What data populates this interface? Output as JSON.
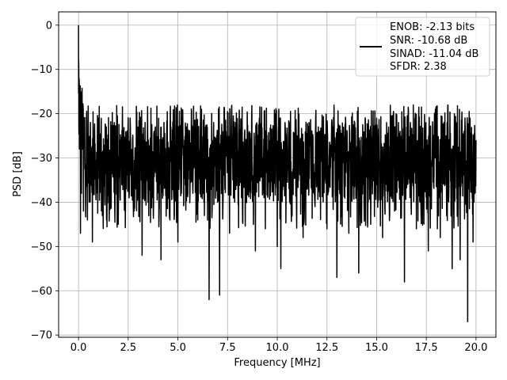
{
  "chart_data": {
    "type": "line",
    "xlabel": "Frequency [MHz]",
    "ylabel": "PSD [dB]",
    "xlim": [
      -1.0,
      21.0
    ],
    "ylim": [
      -70.5,
      3.0
    ],
    "x_ticks": [
      0.0,
      2.5,
      5.0,
      7.5,
      10.0,
      12.5,
      15.0,
      17.5,
      20.0
    ],
    "x_tick_labels": [
      "0.0",
      "2.5",
      "5.0",
      "7.5",
      "10.0",
      "12.5",
      "15.0",
      "17.5",
      "20.0"
    ],
    "y_ticks": [
      0,
      -10,
      -20,
      -30,
      -40,
      -50,
      -60,
      -70
    ],
    "y_tick_labels": [
      "0",
      "−10",
      "−20",
      "−30",
      "−40",
      "−50",
      "−60",
      "−70"
    ],
    "grid": true,
    "legend_position": "top-right",
    "series": [
      {
        "color": "#000000",
        "x": [
          0.0,
          0.01,
          0.02,
          0.03,
          0.05,
          0.08,
          0.1,
          0.12,
          0.15,
          0.2,
          0.25,
          0.3,
          0.35,
          0.4,
          0.45,
          0.5,
          0.55,
          0.6,
          0.7,
          0.8,
          0.9,
          1.0,
          1.2,
          1.4,
          1.6,
          1.8,
          2.0,
          2.2,
          2.4,
          2.6,
          2.8,
          3.0,
          3.2,
          3.35,
          3.5,
          3.8,
          4.0,
          4.15,
          4.3,
          4.6,
          4.8,
          5.0,
          5.2,
          5.5,
          5.8,
          6.0,
          6.3,
          6.57,
          6.8,
          7.0,
          7.1,
          7.3,
          7.6,
          7.9,
          8.2,
          8.5,
          8.8,
          8.9,
          9.1,
          9.4,
          9.7,
          10.0,
          10.18,
          10.4,
          10.7,
          11.0,
          11.3,
          11.6,
          11.9,
          12.2,
          12.5,
          12.8,
          13.0,
          13.3,
          13.6,
          13.9,
          14.1,
          14.4,
          14.7,
          15.0,
          15.3,
          15.6,
          15.9,
          16.2,
          16.4,
          16.7,
          17.0,
          17.3,
          17.6,
          17.9,
          18.2,
          18.5,
          18.8,
          19.0,
          19.2,
          19.4,
          19.58,
          19.7,
          19.85,
          20.0
        ],
        "values": [
          0,
          -8,
          -23,
          -12,
          -28,
          -15,
          -47,
          -22,
          -38,
          -20,
          -42,
          -25,
          -37,
          -21,
          -44,
          -26,
          -40,
          -22,
          -49,
          -24,
          -38,
          -21,
          -43,
          -23,
          -39,
          -22,
          -45,
          -24,
          -37,
          -21,
          -42,
          -23,
          -52,
          -22,
          -40,
          -24,
          -36,
          -53,
          -22,
          -44,
          -25,
          -49,
          -21,
          -38,
          -23,
          -44,
          -26,
          -62,
          -22,
          -40,
          -61,
          -24,
          -47,
          -22,
          -39,
          -25,
          -45,
          -51,
          -21,
          -46,
          -24,
          -50,
          -55,
          -23,
          -42,
          -25,
          -48,
          -22,
          -41,
          -24,
          -46,
          -23,
          -57,
          -25,
          -47,
          -22,
          -56,
          -24,
          -45,
          -21,
          -48,
          -23,
          -42,
          -25,
          -58,
          -22,
          -46,
          -24,
          -51,
          -23,
          -48,
          -25,
          -55,
          -22,
          -53,
          -24,
          -67,
          -21,
          -49,
          -26
        ]
      }
    ],
    "legend": [
      "ENOB: -2.13 bits",
      "SNR: -10.68 dB",
      "SINAD: -11.04 dB",
      "SFDR: 2.38"
    ]
  }
}
